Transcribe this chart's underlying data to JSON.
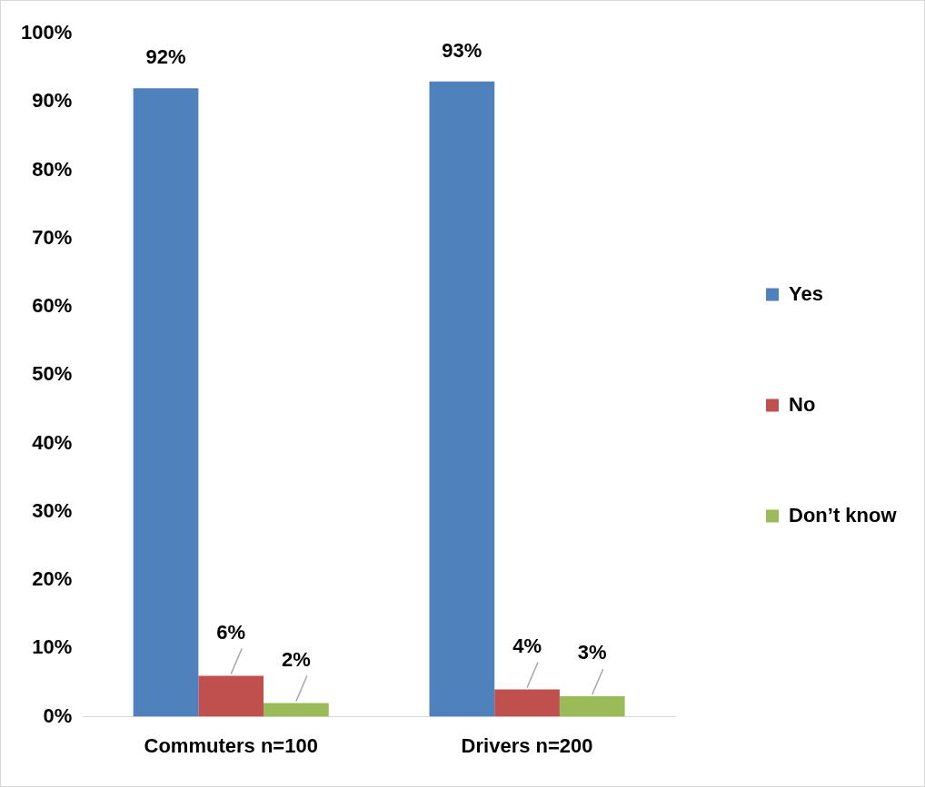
{
  "chart_data": {
    "type": "bar",
    "categories": [
      "Commuters n=100",
      "Drivers n=200"
    ],
    "series": [
      {
        "name": "Yes",
        "color": "#4f81bd",
        "values": [
          92,
          93
        ]
      },
      {
        "name": "No",
        "color": "#c0504d",
        "values": [
          6,
          4
        ]
      },
      {
        "name": "Don’t know",
        "color": "#9bbb59",
        "values": [
          2,
          3
        ]
      }
    ],
    "ylim": [
      0,
      100
    ],
    "yticks": [
      {
        "value": 0,
        "label": "0%"
      },
      {
        "value": 10,
        "label": "10%"
      },
      {
        "value": 20,
        "label": "20%"
      },
      {
        "value": 30,
        "label": "30%"
      },
      {
        "value": 40,
        "label": "40%"
      },
      {
        "value": 50,
        "label": "50%"
      },
      {
        "value": 60,
        "label": "60%"
      },
      {
        "value": 70,
        "label": "70%"
      },
      {
        "value": 80,
        "label": "80%"
      },
      {
        "value": 90,
        "label": "90%"
      },
      {
        "value": 100,
        "label": "100%"
      }
    ],
    "value_labels": [
      [
        "92%",
        "93%"
      ],
      [
        "6%",
        "4%"
      ],
      [
        "2%",
        "3%"
      ]
    ],
    "grid": false,
    "legend": "right"
  }
}
